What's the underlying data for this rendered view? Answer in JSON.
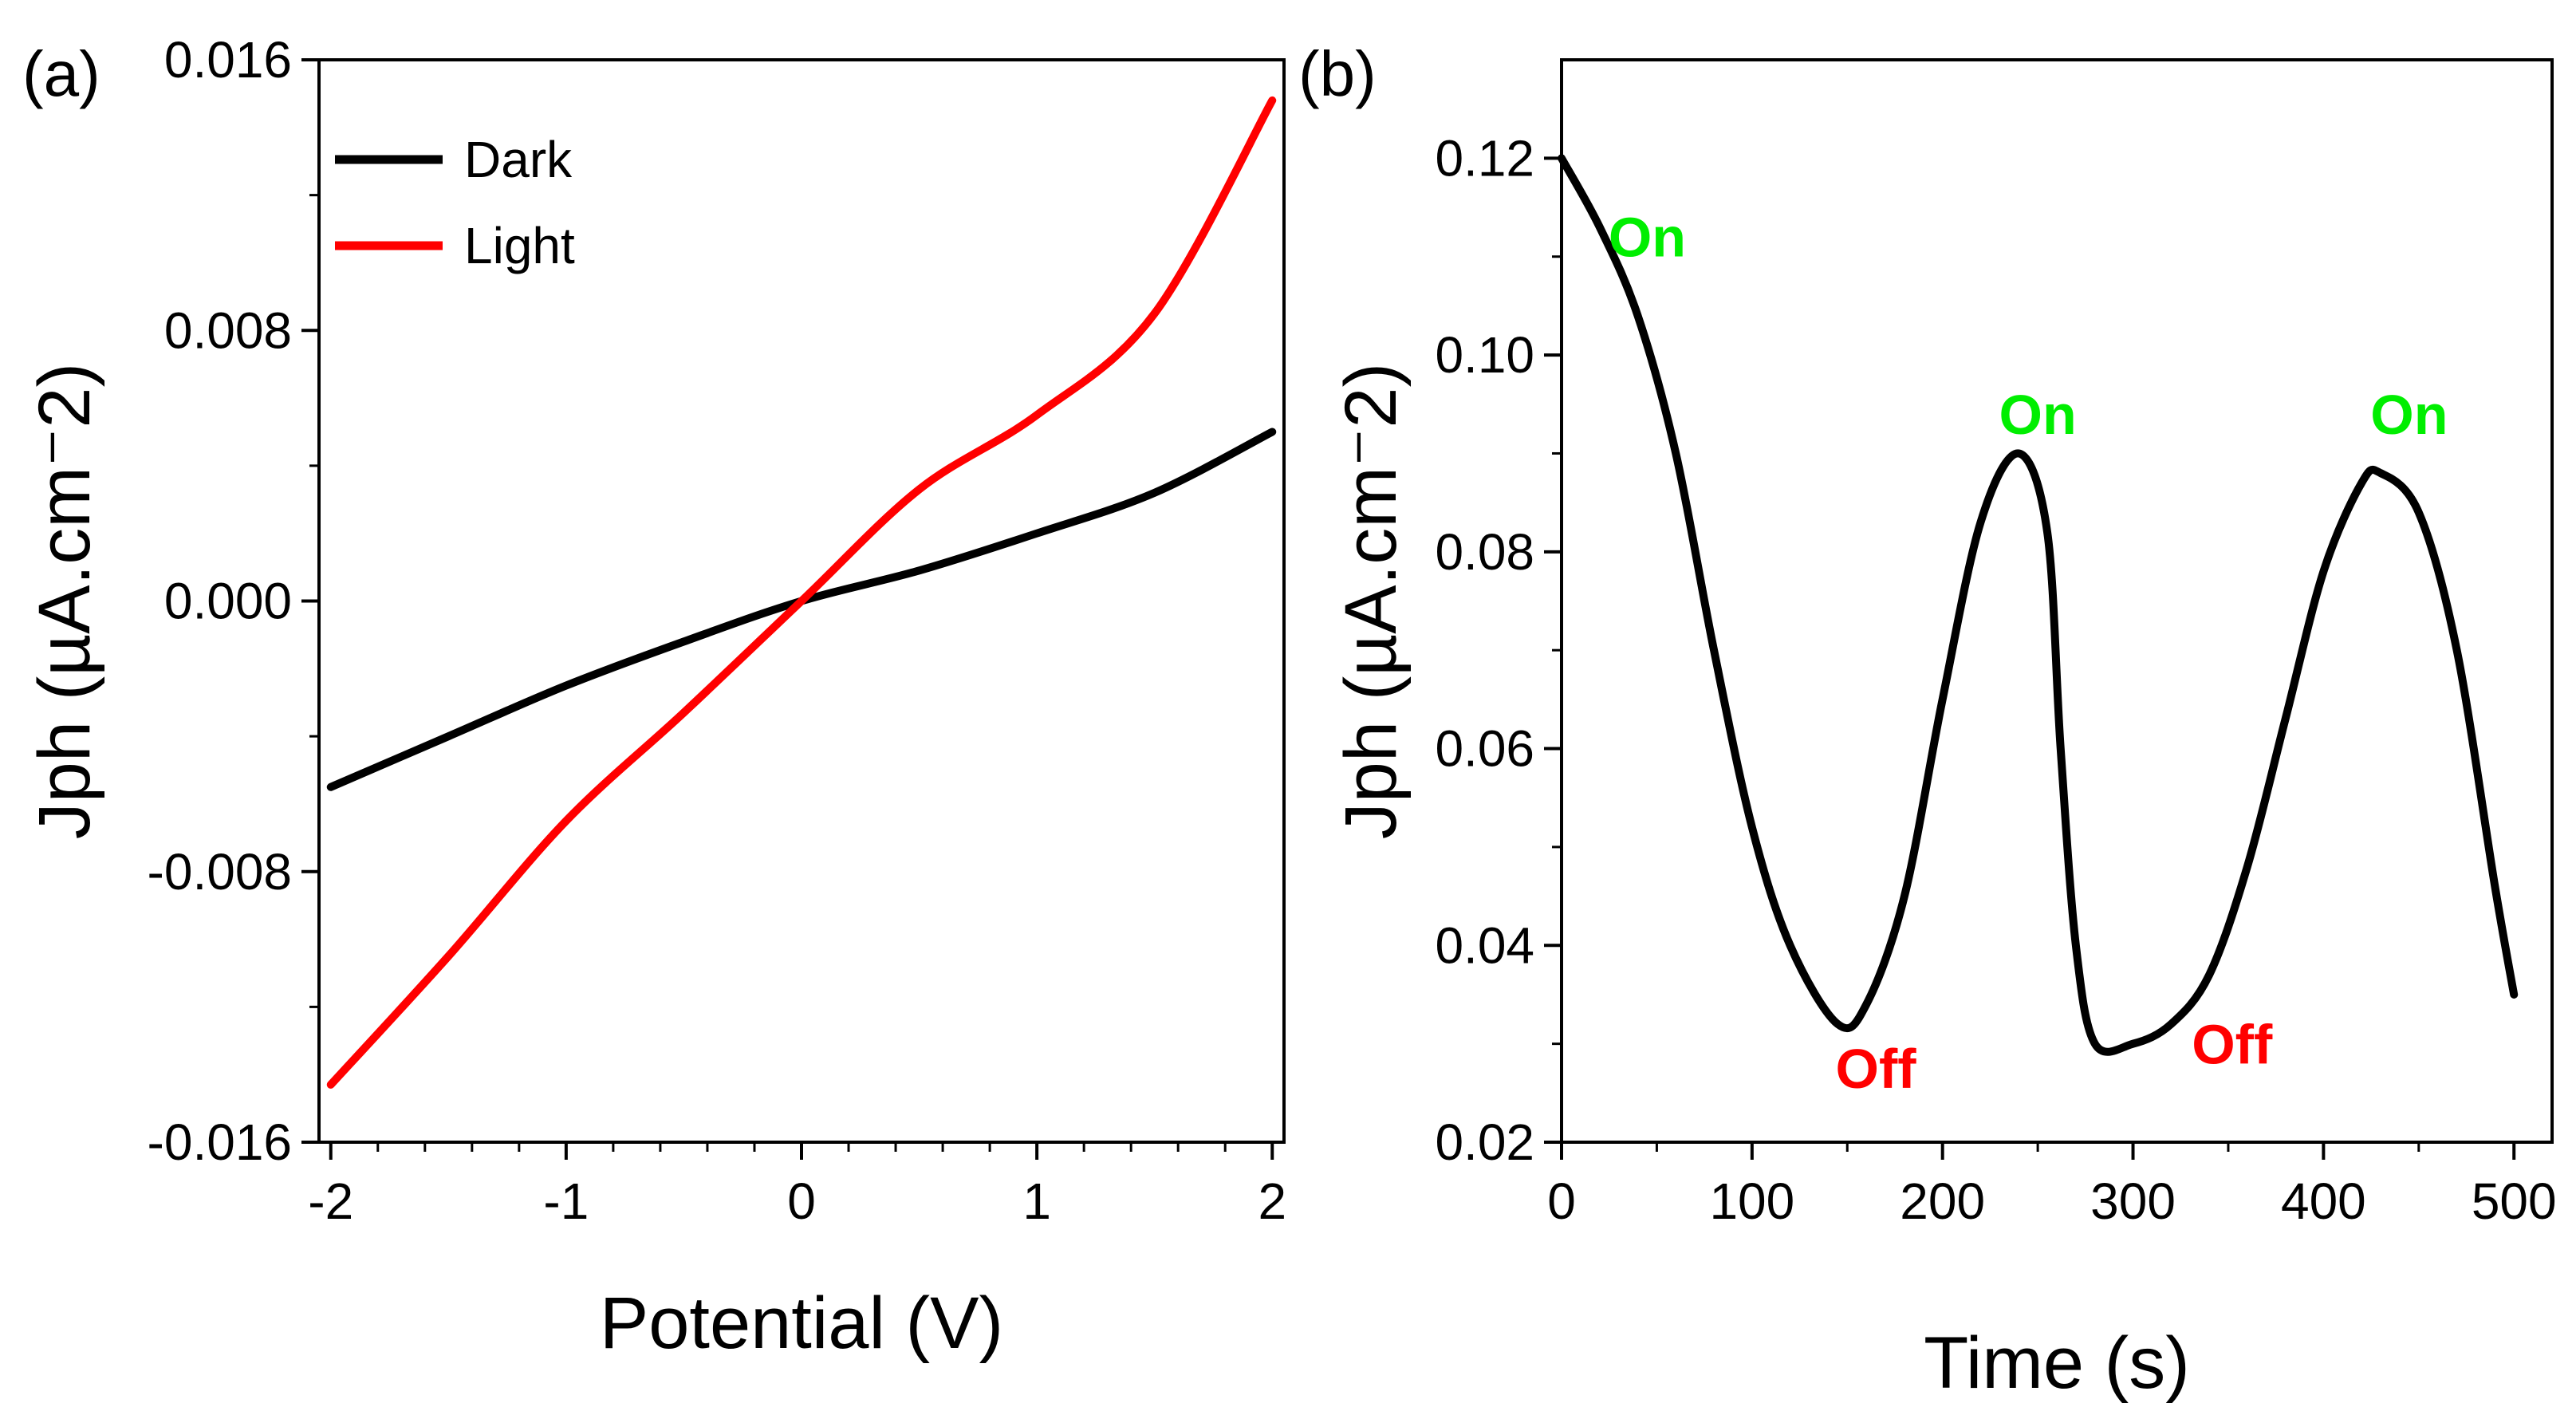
{
  "chart_data": [
    {
      "panel_label": "(a)",
      "type": "line",
      "xlabel": "Potential (V)",
      "ylabel": "Jph (µA.cm⁻2)",
      "xlim": [
        -2.05,
        2.05
      ],
      "ylim": [
        -0.016,
        0.016
      ],
      "x_ticks": [
        "-2",
        "-1",
        "0",
        "1",
        "2"
      ],
      "y_ticks": [
        "-0.016",
        "-0.008",
        "0.000",
        "0.008",
        "0.016"
      ],
      "legend_position": "top-left",
      "series": [
        {
          "name": "Dark",
          "color": "#000000",
          "x": [
            -2.0,
            -1.5,
            -1.0,
            -0.5,
            0.0,
            0.5,
            1.0,
            1.5,
            2.0
          ],
          "y": [
            -0.0055,
            -0.004,
            -0.0025,
            -0.0012,
            0.0,
            0.0009,
            0.002,
            0.0032,
            0.005
          ]
        },
        {
          "name": "Light",
          "color": "#ff0000",
          "x": [
            -2.0,
            -1.5,
            -1.0,
            -0.5,
            0.0,
            0.5,
            1.0,
            1.5,
            2.0
          ],
          "y": [
            -0.0143,
            -0.0105,
            -0.0065,
            -0.0033,
            0.0,
            0.0033,
            0.0055,
            0.0085,
            0.0148
          ]
        }
      ]
    },
    {
      "panel_label": "(b)",
      "type": "line",
      "xlabel": "Time (s)",
      "ylabel": "Jph (µA.cm⁻2)",
      "xlim": [
        0,
        520
      ],
      "ylim": [
        0.02,
        0.13
      ],
      "x_ticks": [
        "0",
        "100",
        "200",
        "300",
        "400",
        "500"
      ],
      "y_ticks": [
        "0.02",
        "0.04",
        "0.06",
        "0.08",
        "0.10",
        "0.12"
      ],
      "series": [
        {
          "name": "Jph",
          "color": "#000000",
          "x": [
            0,
            20,
            40,
            60,
            80,
            100,
            120,
            145,
            160,
            180,
            200,
            220,
            240,
            255,
            262,
            270,
            280,
            300,
            320,
            340,
            360,
            380,
            400,
            420,
            430,
            450,
            470,
            490,
            500
          ],
          "y": [
            0.12,
            0.113,
            0.104,
            0.09,
            0.07,
            0.052,
            0.04,
            0.032,
            0.034,
            0.045,
            0.065,
            0.083,
            0.09,
            0.082,
            0.06,
            0.04,
            0.03,
            0.03,
            0.032,
            0.037,
            0.048,
            0.063,
            0.078,
            0.087,
            0.088,
            0.084,
            0.07,
            0.046,
            0.035
          ]
        }
      ],
      "annotations": [
        {
          "text": "On",
          "x": 45,
          "y": 0.11,
          "color": "#00ee00"
        },
        {
          "text": "On",
          "x": 250,
          "y": 0.092,
          "color": "#00ee00"
        },
        {
          "text": "On",
          "x": 445,
          "y": 0.092,
          "color": "#00ee00"
        },
        {
          "text": "Off",
          "x": 165,
          "y": 0.0255,
          "color": "#ff0000"
        },
        {
          "text": "Off",
          "x": 352,
          "y": 0.028,
          "color": "#ff0000"
        }
      ]
    }
  ]
}
